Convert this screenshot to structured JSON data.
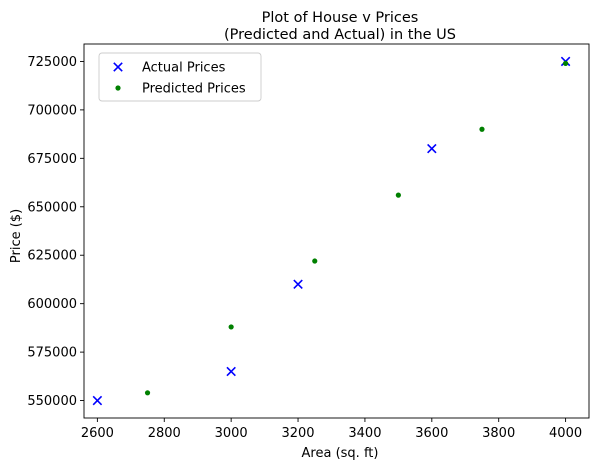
{
  "chart_data": {
    "type": "scatter",
    "title_lines": [
      "Plot of House v Prices",
      "(Predicted and Actual) in the US"
    ],
    "xlabel": "Area (sq. ft)",
    "ylabel": "Price ($)",
    "xlim": [
      2560,
      4070
    ],
    "ylim": [
      541000,
      734000
    ],
    "xticks": [
      2600,
      2800,
      3000,
      3200,
      3400,
      3600,
      3800,
      4000
    ],
    "yticks": [
      550000,
      575000,
      600000,
      625000,
      650000,
      675000,
      700000,
      725000
    ],
    "grid": false,
    "legend_position": "upper-left",
    "series": [
      {
        "name": "Actual Prices",
        "marker": "x",
        "color": "#0000ff",
        "points": [
          {
            "x": 2600,
            "y": 550000
          },
          {
            "x": 3000,
            "y": 565000
          },
          {
            "x": 3200,
            "y": 610000
          },
          {
            "x": 3600,
            "y": 680000
          },
          {
            "x": 4000,
            "y": 725000
          }
        ]
      },
      {
        "name": "Predicted Prices",
        "marker": "dot",
        "color": "#008000",
        "points": [
          {
            "x": 2750,
            "y": 554000
          },
          {
            "x": 3000,
            "y": 588000
          },
          {
            "x": 3250,
            "y": 622000
          },
          {
            "x": 3500,
            "y": 656000
          },
          {
            "x": 3750,
            "y": 690000
          },
          {
            "x": 4000,
            "y": 724000
          }
        ]
      }
    ]
  }
}
